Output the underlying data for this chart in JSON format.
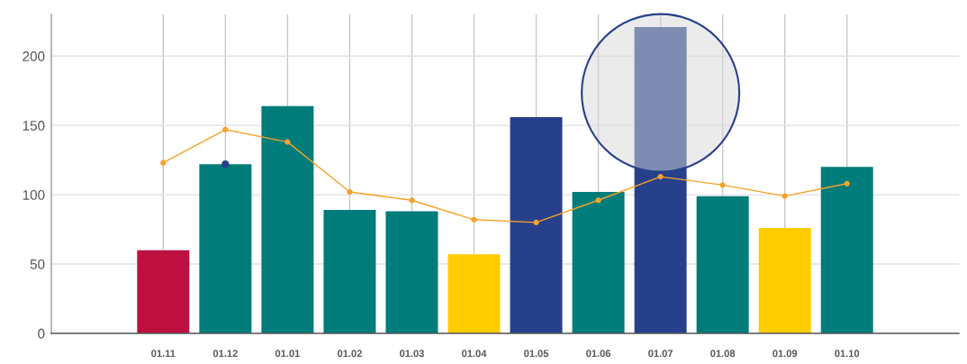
{
  "chart_data": {
    "type": "bar",
    "categories": [
      "01.11",
      "01.12",
      "01.01",
      "01.02",
      "01.03",
      "01.04",
      "01.05",
      "01.06",
      "01.07",
      "01.08",
      "01.09",
      "01.10"
    ],
    "series": [
      {
        "colors": [
          "#be1040",
          "#007c7a",
          "#007c7a",
          "#007c7a",
          "#007c7a",
          "#ffcc00",
          "#27408b",
          "#007c7a",
          "#27408b",
          "#007c7a",
          "#ffcc00",
          "#007c7a"
        ],
        "values": [
          60,
          122,
          164,
          89,
          88,
          57,
          156,
          102,
          221,
          99,
          76,
          120
        ]
      },
      {
        "type": "line",
        "color": "#f6a22a",
        "values": [
          123,
          147,
          138,
          102,
          96,
          82,
          80,
          96,
          113,
          107,
          99,
          108
        ]
      },
      {
        "type": "scatter",
        "color": "#27408b",
        "values": [
          null,
          122,
          null,
          null,
          null,
          null,
          null,
          null,
          null,
          null,
          null,
          null
        ]
      }
    ],
    "ylim": [
      0,
      230
    ],
    "yticks": [
      0,
      50,
      100,
      150,
      200
    ],
    "grid": true,
    "marker": "circle"
  }
}
